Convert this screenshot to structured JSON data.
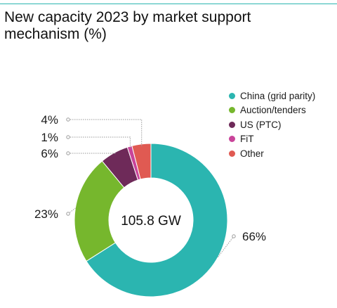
{
  "title": "New capacity 2023 by market support mechanism (%)",
  "center_label": "105.8 GW",
  "colors": {
    "accent_rule": "#2bb5b0",
    "leader": "#9a9a9a"
  },
  "chart_data": {
    "type": "pie",
    "variant": "donut",
    "title": "New capacity 2023 by market support mechanism (%)",
    "center_text": "105.8 GW",
    "unit": "%",
    "legend_position": "top-right",
    "categories": [
      "China (grid parity)",
      "Auction/tenders",
      "US (PTC)",
      "FiT",
      "Other"
    ],
    "values": [
      66,
      23,
      6,
      1,
      4
    ],
    "labels": [
      "66%",
      "23%",
      "6%",
      "1%",
      "4%"
    ],
    "colors": [
      "#2bb5b0",
      "#76b72d",
      "#6e2a59",
      "#c9449a",
      "#e05a52"
    ]
  }
}
